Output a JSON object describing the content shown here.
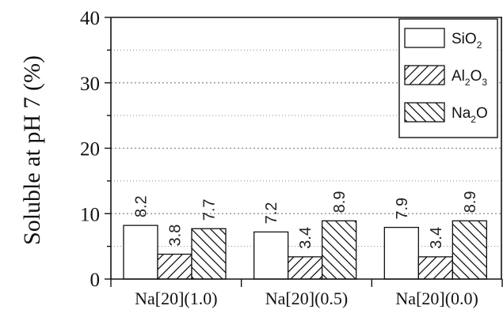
{
  "chart_data": {
    "type": "bar",
    "title": "",
    "xlabel": "",
    "ylabel": "Soluble at pH 7 (%)",
    "ylim": [
      0,
      40
    ],
    "yticks": [
      0,
      10,
      20,
      30,
      40
    ],
    "grid": "horizontal-dotted",
    "legend_position": "top-right",
    "categories": [
      "Na[20](1.0)",
      "Na[20](0.5)",
      "Na[20](0.0)"
    ],
    "series": [
      {
        "name": "SiO2",
        "legend": {
          "base": "SiO",
          "sub": "2",
          "mid": "",
          "sub2": "",
          "tail": ""
        },
        "pattern": "none",
        "values": [
          8.2,
          7.2,
          7.9
        ],
        "labels": [
          "8.2",
          "7.2",
          "7.9"
        ]
      },
      {
        "name": "Al2O3",
        "legend": {
          "base": "Al",
          "sub": "2",
          "mid": "O",
          "sub2": "3",
          "tail": ""
        },
        "pattern": "forward-hatch",
        "values": [
          3.8,
          3.4,
          3.4
        ],
        "labels": [
          "3.8",
          "3.4",
          "3.4"
        ]
      },
      {
        "name": "Na2O",
        "legend": {
          "base": "Na",
          "sub": "2",
          "mid": "O",
          "sub2": "",
          "tail": ""
        },
        "pattern": "back-hatch",
        "values": [
          7.7,
          8.9,
          8.9
        ],
        "labels": [
          "7.7",
          "8.9",
          "8.9"
        ]
      }
    ],
    "colors": {
      "stroke": "#111111",
      "fill": "#ffffff",
      "grid": "#888888"
    }
  }
}
